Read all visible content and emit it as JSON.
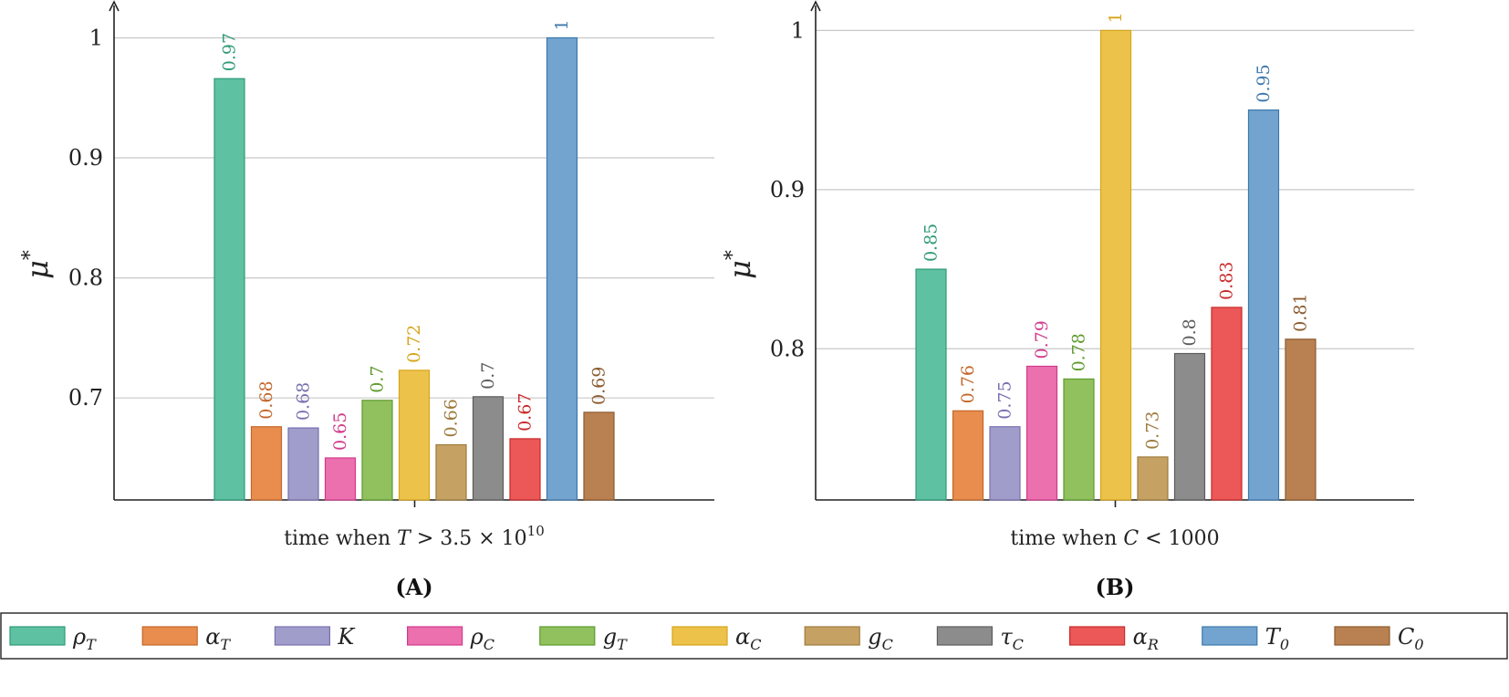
{
  "chart_data": [
    {
      "type": "bar",
      "panel_label": "(A)",
      "xlabel_prefix": "time when ",
      "xlabel_var": "T",
      "xlabel_mid": " > 3.5 × 10",
      "xlabel_sup": "10",
      "ylabel": "μ",
      "ylabel_sup": "*",
      "ylim": [
        0.615,
        1.03
      ],
      "yticks": [
        0.7,
        0.8,
        0.9,
        1
      ],
      "ytick_labels": [
        "0.7",
        "0.8",
        "0.9",
        "1"
      ],
      "series": [
        {
          "key": "rho_T",
          "value": 0.966,
          "label": "0.97"
        },
        {
          "key": "alpha_T",
          "value": 0.676,
          "label": "0.68"
        },
        {
          "key": "K",
          "value": 0.675,
          "label": "0.68"
        },
        {
          "key": "rho_C",
          "value": 0.65,
          "label": "0.65"
        },
        {
          "key": "g_T",
          "value": 0.698,
          "label": "0.7"
        },
        {
          "key": "alpha_C",
          "value": 0.723,
          "label": "0.72"
        },
        {
          "key": "g_C",
          "value": 0.661,
          "label": "0.66"
        },
        {
          "key": "tau_C",
          "value": 0.701,
          "label": "0.7"
        },
        {
          "key": "alpha_R",
          "value": 0.666,
          "label": "0.67"
        },
        {
          "key": "T_0",
          "value": 1.0,
          "label": "1"
        },
        {
          "key": "C_0",
          "value": 0.688,
          "label": "0.69"
        }
      ]
    },
    {
      "type": "bar",
      "panel_label": "(B)",
      "xlabel_prefix": "time when ",
      "xlabel_var": "C",
      "xlabel_mid": " < 1000",
      "xlabel_sup": "",
      "ylabel": "μ",
      "ylabel_sup": "*",
      "ylim": [
        0.705,
        1.018
      ],
      "yticks": [
        0.8,
        0.9,
        1
      ],
      "ytick_labels": [
        "0.8",
        "0.9",
        "1"
      ],
      "series": [
        {
          "key": "rho_T",
          "value": 0.85,
          "label": "0.85"
        },
        {
          "key": "alpha_T",
          "value": 0.761,
          "label": "0.76"
        },
        {
          "key": "K",
          "value": 0.751,
          "label": "0.75"
        },
        {
          "key": "rho_C",
          "value": 0.789,
          "label": "0.79"
        },
        {
          "key": "g_T",
          "value": 0.781,
          "label": "0.78"
        },
        {
          "key": "alpha_C",
          "value": 1.0,
          "label": "1"
        },
        {
          "key": "g_C",
          "value": 0.732,
          "label": "0.73"
        },
        {
          "key": "tau_C",
          "value": 0.797,
          "label": "0.8"
        },
        {
          "key": "alpha_R",
          "value": 0.826,
          "label": "0.83"
        },
        {
          "key": "T_0",
          "value": 0.95,
          "label": "0.95"
        },
        {
          "key": "C_0",
          "value": 0.806,
          "label": "0.81"
        }
      ]
    }
  ],
  "legend": [
    {
      "key": "rho_T",
      "sym": "ρ",
      "sub": "T",
      "fill": "#5ec1a1",
      "stroke": "#2e9a78"
    },
    {
      "key": "alpha_T",
      "sym": "α",
      "sub": "T",
      "fill": "#e98d4e",
      "stroke": "#c4672a"
    },
    {
      "key": "K",
      "sym": "K",
      "sub": "",
      "fill": "#a09dcb",
      "stroke": "#7770b0"
    },
    {
      "key": "rho_C",
      "sym": "ρ",
      "sub": "C",
      "fill": "#ec6fae",
      "stroke": "#d13b8c"
    },
    {
      "key": "g_T",
      "sym": "g",
      "sub": "T",
      "fill": "#90c15e",
      "stroke": "#5f9a2e"
    },
    {
      "key": "alpha_C",
      "sym": "α",
      "sub": "C",
      "fill": "#edc24a",
      "stroke": "#d6a51a"
    },
    {
      "key": "g_C",
      "sym": "g",
      "sub": "C",
      "fill": "#c5a264",
      "stroke": "#9e7b3d"
    },
    {
      "key": "tau_C",
      "sym": "τ",
      "sub": "C",
      "fill": "#8c8c8c",
      "stroke": "#5c5c5c"
    },
    {
      "key": "alpha_R",
      "sym": "α",
      "sub": "R",
      "fill": "#ec5757",
      "stroke": "#c82a2a"
    },
    {
      "key": "T_0",
      "sym": "T",
      "sub": "0",
      "fill": "#72a4cf",
      "stroke": "#3d78ad"
    },
    {
      "key": "C_0",
      "sym": "C",
      "sub": "0",
      "fill": "#b98152",
      "stroke": "#8c5a2e"
    }
  ],
  "value_label_colors": {
    "rho_T": "#2e9a78",
    "alpha_T": "#c4672a",
    "K": "#7770b0",
    "rho_C": "#d13b8c",
    "g_T": "#5f9a2e",
    "alpha_C": "#d6a51a",
    "g_C": "#9e7b3d",
    "tau_C": "#5c5c5c",
    "alpha_R": "#c82a2a",
    "T_0": "#3d78ad",
    "C_0": "#8c5a2e"
  }
}
